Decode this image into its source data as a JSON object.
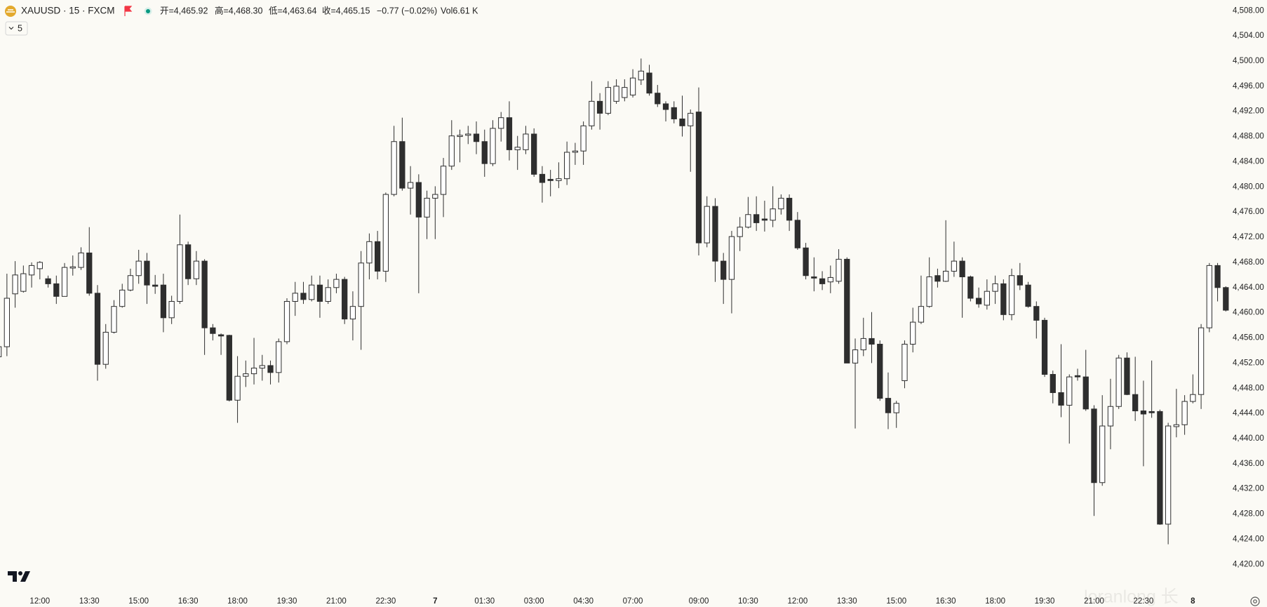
{
  "chart_data": {
    "type": "candlestick",
    "title": "XAUUSD · 15 · FXCM",
    "legend_items": [
      "开=4,465.92",
      "高=4,468.30",
      "低=4,463.64",
      "收=4,465.15",
      "−0.77 (−0.02%)",
      "Vol6.61 K"
    ],
    "interval_button": "5",
    "watermark": "loranlong 长",
    "up_color": "#ffffff",
    "down_color": "#2e2e2e",
    "wick_color": "#2e2e2e",
    "grid": false,
    "xlim": [
      0.16,
      149.4
    ],
    "ylim": [
      4416.8,
      4509.7
    ],
    "open": [
      4453,
      4454.6,
      4463,
      4463.4,
      4466,
      4467,
      4465.4,
      4464.6,
      4462.6,
      4467.1,
      4467.2,
      4469.5,
      4463.1,
      4451.8,
      4456.9,
      4461,
      4463.6,
      4465.9,
      4468.2,
      4464.4,
      4464.4,
      4459.2,
      4461.8,
      4470.8,
      4465.4,
      4468.2,
      4457.6,
      4456.5,
      4456.4,
      4446.1,
      4449.9,
      4450.3,
      4451.2,
      4451.6,
      4450.5,
      4455.4,
      4461.8,
      4463.1,
      4462.1,
      4464.4,
      4461.8,
      4464,
      4465.3,
      4459,
      4461,
      4467.9,
      4471.3,
      4466.6,
      4478.8,
      4487.2,
      4479.8,
      4480.7,
      4475.2,
      4478.2,
      4478.8,
      4483.3,
      4488,
      4488.2,
      4488.4,
      4487.2,
      4483.7,
      4489.3,
      4491,
      4485.9,
      4485.9,
      4488.4,
      4482,
      4481.2,
      4481,
      4481.3,
      4485.5,
      4485.7,
      4489.7,
      4493.6,
      4491.7,
      4493.6,
      4494.2,
      4494.6,
      4497,
      4498.1,
      4494.9,
      4493.2,
      4492.6,
      4490.8,
      4489.7,
      4491.9,
      4471.1,
      4476.9,
      4468.2,
      4465.3,
      4472.1,
      4473.6,
      4475.6,
      4474.9,
      4474.7,
      4476.5,
      4478.2,
      4474.7,
      4470.3,
      4465.7,
      4465.4,
      4464.9,
      4465,
      4468.5,
      4452,
      4454.1,
      4455.9,
      4455,
      4446.4,
      4444.1,
      4449.2,
      4455,
      4458.5,
      4461,
      4465.9,
      4465,
      4466.6,
      4468.2,
      4465.7,
      4462.3,
      4461.2,
      4463.4,
      4464.6,
      4459.7,
      4465.9,
      4464.4,
      4461,
      4458.8,
      4450.2,
      4447.3,
      4445.3,
      4450,
      4449.8,
      4444.7,
      4433,
      4442,
      4445.1,
      4452.8,
      4447,
      4444.4,
      4444.3,
      4444.3,
      4426.4,
      4441.9,
      4442.2,
      4445.9,
      4447,
      4457.6,
      4467.5,
      4464
    ],
    "high": [
      4455,
      4466.2,
      4468.2,
      4467.5,
      4468,
      4468.2,
      4465.9,
      4465.9,
      4467.9,
      4469.1,
      4470.4,
      4473.6,
      4464.4,
      4458.2,
      4462,
      4464.6,
      4467,
      4470,
      4469.5,
      4466,
      4466.2,
      4462.7,
      4475.6,
      4471.3,
      4469.8,
      4468.5,
      4458.2,
      4456.7,
      4456.5,
      4453.1,
      4452.4,
      4456,
      4453.3,
      4452.4,
      4455.9,
      4462.3,
      4464.9,
      4464.9,
      4465.9,
      4465.9,
      4465.3,
      4466.2,
      4465.7,
      4463.4,
      4469.8,
      4472.6,
      4473,
      4479.1,
      4489.7,
      4491,
      4483.3,
      4482,
      4479.4,
      4480.1,
      4484.6,
      4490.6,
      4489.1,
      4489.7,
      4490.4,
      4489.1,
      4490.6,
      4491.9,
      4493.6,
      4488.1,
      4489.7,
      4489.3,
      4483.3,
      4482.7,
      4483.9,
      4487.2,
      4487,
      4490.4,
      4496.8,
      4494.9,
      4496.8,
      4497.1,
      4497.1,
      4498.7,
      4500.4,
      4499.4,
      4496.2,
      4493.6,
      4493.6,
      4494.5,
      4492.3,
      4495.8,
      4478.5,
      4478.2,
      4469.5,
      4473,
      4475.2,
      4478.4,
      4478.5,
      4477.8,
      4480.1,
      4478.8,
      4478.8,
      4476,
      4471.1,
      4468.8,
      4466.6,
      4467.5,
      4470.1,
      4468.8,
      4455.9,
      4459.2,
      4460.1,
      4455.6,
      4450.5,
      4446,
      4455.6,
      4460.8,
      4465.9,
      4468.8,
      4467,
      4474.7,
      4471.3,
      4468.8,
      4465.9,
      4464,
      4465.3,
      4465.9,
      4465.3,
      4467,
      4467.9,
      4464.9,
      4461.8,
      4459.2,
      4450.8,
      4455,
      4450.2,
      4451.1,
      4454.1,
      4445.3,
      4446.9,
      4449.5,
      4453.3,
      4453.7,
      4453,
      4449.2,
      4452.4,
      4444.6,
      4442.5,
      4447.9,
      4446.9,
      4450.2,
      4458.2,
      4467.9,
      4467.9,
      4464.2
    ],
    "low": [
      4452.5,
      4453.1,
      4460.8,
      4463.2,
      4464,
      4465.3,
      4464,
      4461.4,
      4462.6,
      4465.9,
      4466.8,
      4462.7,
      4449.2,
      4451.1,
      4456.7,
      4460.8,
      4463.4,
      4464.6,
      4461.4,
      4463,
      4456.9,
      4458.2,
      4461.4,
      4464.4,
      4464.4,
      4453.3,
      4455.6,
      4453.3,
      4445.9,
      4442.5,
      4448.2,
      4448.6,
      4449.2,
      4448.6,
      4448.9,
      4455,
      4459.5,
      4461.4,
      4461.8,
      4459.2,
      4461.4,
      4463.1,
      4458.2,
      4455.6,
      4454.1,
      4465.3,
      4465.3,
      4464.9,
      4478.5,
      4479.4,
      4475.6,
      4463.1,
      4471.7,
      4471.7,
      4475.2,
      4482.7,
      4483.9,
      4486.8,
      4485.2,
      4481.6,
      4483.3,
      4487.2,
      4484.2,
      4482.7,
      4485.2,
      4481.6,
      4477.5,
      4478.5,
      4479.8,
      4480.3,
      4483.5,
      4483.5,
      4489.1,
      4489.1,
      4491.4,
      4493.2,
      4493.6,
      4494.2,
      4496.2,
      4494.5,
      4492.7,
      4490.4,
      4490.1,
      4488,
      4482.4,
      4469.1,
      4470.4,
      4464.9,
      4461.4,
      4459.9,
      4469.8,
      4473.4,
      4473,
      4472.9,
      4473.6,
      4475.6,
      4473,
      4470,
      4465.3,
      4463.4,
      4463.6,
      4463.1,
      4464.6,
      4452,
      4441.6,
      4453.1,
      4452,
      4446,
      4441.5,
      4441.7,
      4448,
      4453.7,
      4458.2,
      4460.8,
      4464,
      4464.9,
      4465.7,
      4459.2,
      4461.8,
      4460.8,
      4460.5,
      4461.4,
      4458.8,
      4458.8,
      4463.6,
      4460.8,
      4455.9,
      4449.8,
      4445.6,
      4443.4,
      4439.2,
      4449.2,
      4444.4,
      4427.7,
      4432.5,
      4438.3,
      4444.7,
      4446.9,
      4442.8,
      4435.6,
      4443.3,
      4426.3,
      4423.2,
      4440.2,
      4440.6,
      4445.6,
      4444.7,
      4456.9,
      4461.8,
      4460.2
    ],
    "close": [
      4454.6,
      4462.3,
      4466,
      4466.2,
      4467.5,
      4468,
      4464.6,
      4462.6,
      4467.2,
      4467.3,
      4469.5,
      4463.1,
      4451.8,
      4456.9,
      4461,
      4463.6,
      4465.9,
      4468.2,
      4464.4,
      4464.2,
      4459.2,
      4461.8,
      4470.8,
      4465.4,
      4468.2,
      4457.6,
      4456.7,
      4456.3,
      4446.1,
      4449.9,
      4450.3,
      4451.2,
      4451.6,
      4450.5,
      4455.4,
      4461.8,
      4463.1,
      4462.1,
      4464.4,
      4461.8,
      4464,
      4465.3,
      4459,
      4461,
      4467.9,
      4471.3,
      4466.6,
      4478.8,
      4487.2,
      4479.8,
      4480.7,
      4475.2,
      4478.2,
      4478.8,
      4483.3,
      4488.1,
      4488.2,
      4488.4,
      4487.2,
      4483.7,
      4489.3,
      4491,
      4485.9,
      4486.3,
      4488.4,
      4482,
      4480.7,
      4481,
      4481.3,
      4485.5,
      4485.7,
      4489.7,
      4493.6,
      4491.7,
      4495.8,
      4496,
      4495.8,
      4497.3,
      4498.4,
      4494.9,
      4493.2,
      4492.3,
      4490.8,
      4489.7,
      4491.7,
      4471.1,
      4476.9,
      4468.2,
      4465.3,
      4472.1,
      4473.6,
      4475.6,
      4474.3,
      4474.7,
      4476.5,
      4478.2,
      4474.7,
      4470.3,
      4465.9,
      4465.5,
      4464.6,
      4465.6,
      4468.5,
      4452,
      4454.1,
      4455.9,
      4455,
      4446.4,
      4444.1,
      4445.6,
      4455,
      4458.5,
      4461,
      4465.7,
      4465,
      4466.6,
      4468.2,
      4465.7,
      4462.3,
      4461.4,
      4463.4,
      4464.6,
      4459.7,
      4465.9,
      4464.4,
      4461,
      4458.8,
      4450.2,
      4447.3,
      4445.3,
      4449.8,
      4449.8,
      4444.7,
      4433,
      4442,
      4445.1,
      4452.8,
      4447,
      4444.4,
      4443.9,
      4444.1,
      4426.4,
      4442,
      4442.2,
      4445.9,
      4447,
      4457.6,
      4467.5,
      4464,
      4460.4
    ],
    "xticks": [
      {
        "value": 5,
        "label": "12:00"
      },
      {
        "value": 11,
        "label": "13:30"
      },
      {
        "value": 17,
        "label": "15:00"
      },
      {
        "value": 23,
        "label": "16:30"
      },
      {
        "value": 29,
        "label": "18:00"
      },
      {
        "value": 35,
        "label": "19:30"
      },
      {
        "value": 41,
        "label": "21:00"
      },
      {
        "value": 47,
        "label": "22:30"
      },
      {
        "value": 53,
        "label": "7"
      },
      {
        "value": 59,
        "label": "01:30"
      },
      {
        "value": 65,
        "label": "03:00"
      },
      {
        "value": 71,
        "label": "04:30"
      },
      {
        "value": 77,
        "label": "07:00"
      },
      {
        "value": 85,
        "label": "09:00"
      },
      {
        "value": 91,
        "label": "10:30"
      },
      {
        "value": 97,
        "label": "12:00"
      },
      {
        "value": 103,
        "label": "13:30"
      },
      {
        "value": 109,
        "label": "15:00"
      },
      {
        "value": 115,
        "label": "16:30"
      },
      {
        "value": 121,
        "label": "18:00"
      },
      {
        "value": 127,
        "label": "19:30"
      },
      {
        "value": 133,
        "label": "21:00"
      },
      {
        "value": 139,
        "label": "22:30"
      },
      {
        "value": 145,
        "label": "8"
      }
    ],
    "yticks": [
      {
        "value": 4420,
        "label": "4,420.00"
      },
      {
        "value": 4424,
        "label": "4,424.00"
      },
      {
        "value": 4428,
        "label": "4,428.00"
      },
      {
        "value": 4432,
        "label": "4,432.00"
      },
      {
        "value": 4436,
        "label": "4,436.00"
      },
      {
        "value": 4440,
        "label": "4,440.00"
      },
      {
        "value": 4444,
        "label": "4,444.00"
      },
      {
        "value": 4448,
        "label": "4,448.00"
      },
      {
        "value": 4452,
        "label": "4,452.00"
      },
      {
        "value": 4456,
        "label": "4,456.00"
      },
      {
        "value": 4460,
        "label": "4,460.00"
      },
      {
        "value": 4464,
        "label": "4,464.00"
      },
      {
        "value": 4468,
        "label": "4,468.00"
      },
      {
        "value": 4472,
        "label": "4,472.00"
      },
      {
        "value": 4476,
        "label": "4,476.00"
      },
      {
        "value": 4480,
        "label": "4,480.00"
      },
      {
        "value": 4484,
        "label": "4,484.00"
      },
      {
        "value": 4488,
        "label": "4,488.00"
      },
      {
        "value": 4492,
        "label": "4,492.00"
      },
      {
        "value": 4496,
        "label": "4,496.00"
      },
      {
        "value": 4500,
        "label": "4,500.00"
      },
      {
        "value": 4504,
        "label": "4,504.00"
      },
      {
        "value": 4508,
        "label": "4,508.00"
      }
    ]
  }
}
